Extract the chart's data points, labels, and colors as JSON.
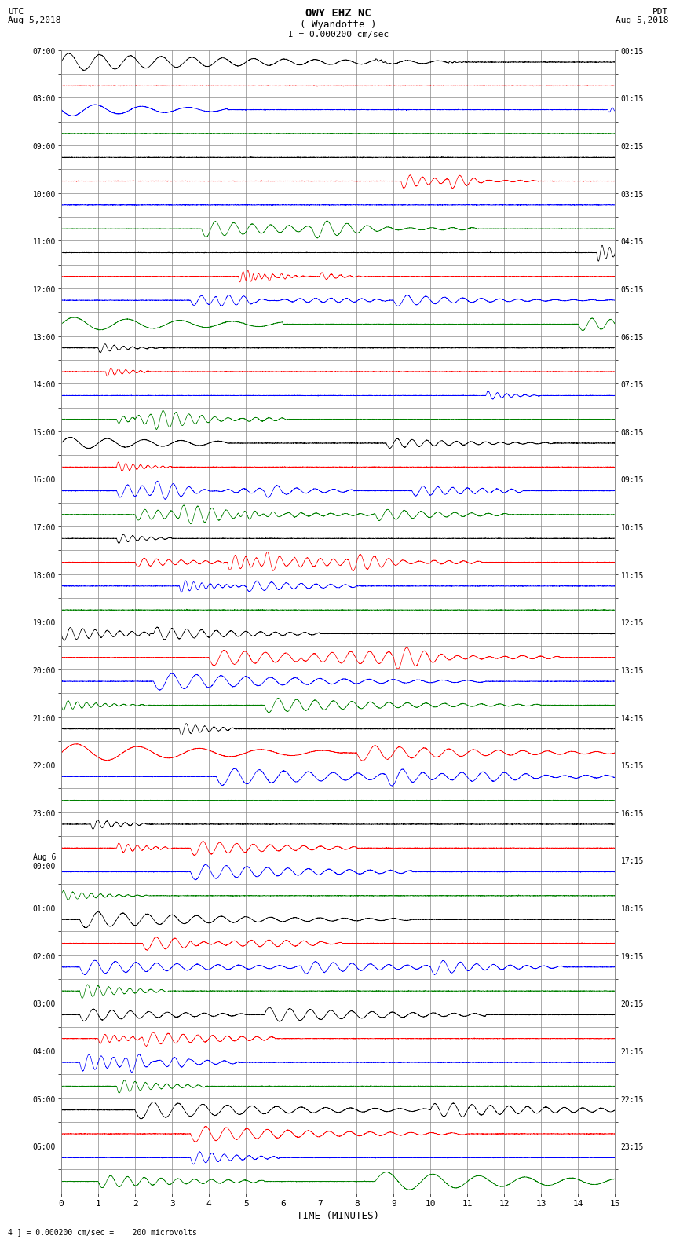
{
  "title_line1": "OWY EHZ NC",
  "title_line2": "( Wyandotte )",
  "scale_label": "I = 0.000200 cm/sec",
  "left_date_label": "UTC\nAug 5,2018",
  "right_date_label": "PDT\nAug 5,2018",
  "xlabel": "TIME (MINUTES)",
  "footer_label": "4 ] = 0.000200 cm/sec =    200 microvolts",
  "left_times": [
    "07:00",
    "",
    "08:00",
    "",
    "09:00",
    "",
    "10:00",
    "",
    "11:00",
    "",
    "12:00",
    "",
    "13:00",
    "",
    "14:00",
    "",
    "15:00",
    "",
    "16:00",
    "",
    "17:00",
    "",
    "18:00",
    "",
    "19:00",
    "",
    "20:00",
    "",
    "21:00",
    "",
    "22:00",
    "",
    "23:00",
    "",
    "Aug 6\n00:00",
    "",
    "01:00",
    "",
    "02:00",
    "",
    "03:00",
    "",
    "04:00",
    "",
    "05:00",
    "",
    "06:00",
    ""
  ],
  "right_times": [
    "00:15",
    "",
    "01:15",
    "",
    "02:15",
    "",
    "03:15",
    "",
    "04:15",
    "",
    "05:15",
    "",
    "06:15",
    "",
    "07:15",
    "",
    "08:15",
    "",
    "09:15",
    "",
    "10:15",
    "",
    "11:15",
    "",
    "12:15",
    "",
    "13:15",
    "",
    "14:15",
    "",
    "15:15",
    "",
    "16:15",
    "",
    "17:15",
    "",
    "18:15",
    "",
    "19:15",
    "",
    "20:15",
    "",
    "21:15",
    "",
    "22:15",
    "",
    "23:15",
    ""
  ],
  "n_rows": 48,
  "x_min": 0,
  "x_max": 15,
  "x_ticks": [
    0,
    1,
    2,
    3,
    4,
    5,
    6,
    7,
    8,
    9,
    10,
    11,
    12,
    13,
    14,
    15
  ],
  "row_colors_cycle": [
    "black",
    "red",
    "blue",
    "green"
  ],
  "bg_color": "white",
  "grid_color": "#888888",
  "line_width": 0.5,
  "figsize": [
    8.5,
    16.13
  ],
  "dpi": 100,
  "seismic_events": [
    {
      "row": 0,
      "t0": 0.0,
      "type": "big_wave",
      "amp": 0.38,
      "freq": 1.2,
      "decay": 0.18,
      "dur": 3.5,
      "sign": 1
    },
    {
      "row": 0,
      "t0": 8.5,
      "type": "spike",
      "amp": 0.06,
      "freq": 8,
      "decay": 2.0,
      "dur": 0.3,
      "sign": 1
    },
    {
      "row": 0,
      "t0": 10.5,
      "type": "spike",
      "amp": 0.04,
      "freq": 8,
      "decay": 2.0,
      "dur": 0.2,
      "sign": 1
    },
    {
      "row": 2,
      "t0": 0.0,
      "type": "big_wave",
      "amp": 0.28,
      "freq": 0.8,
      "decay": 0.3,
      "dur": 1.5,
      "sign": -1
    },
    {
      "row": 2,
      "t0": 14.8,
      "type": "spike",
      "amp": 0.12,
      "freq": 6,
      "decay": 1.5,
      "dur": 0.4,
      "sign": -1
    },
    {
      "row": 5,
      "t0": 9.2,
      "type": "spike",
      "amp": 0.32,
      "freq": 3.0,
      "decay": 0.5,
      "dur": 1.2,
      "sign": -1
    },
    {
      "row": 5,
      "t0": 10.5,
      "type": "spike",
      "amp": 0.25,
      "freq": 2.5,
      "decay": 0.6,
      "dur": 0.8,
      "sign": -1
    },
    {
      "row": 7,
      "t0": 3.8,
      "type": "wave_packet",
      "amp": 0.36,
      "freq": 2.0,
      "decay": 0.4,
      "dur": 2.5,
      "sign": -1
    },
    {
      "row": 7,
      "t0": 6.8,
      "type": "wave_packet",
      "amp": 0.3,
      "freq": 1.8,
      "decay": 0.5,
      "dur": 1.5,
      "sign": -1
    },
    {
      "row": 8,
      "t0": 14.5,
      "type": "spike_sharp",
      "amp": 0.38,
      "freq": 5,
      "decay": 0.8,
      "dur": 0.5,
      "sign": -1
    },
    {
      "row": 9,
      "t0": 4.8,
      "type": "multi_spike",
      "amp": 0.25,
      "freq": 6,
      "decay": 1.0,
      "dur": 0.3,
      "sign": -1
    },
    {
      "row": 9,
      "t0": 5.0,
      "type": "multi_spike",
      "amp": 0.28,
      "freq": 6,
      "decay": 1.0,
      "dur": 0.3,
      "sign": 1
    },
    {
      "row": 9,
      "t0": 5.2,
      "type": "multi_spike",
      "amp": 0.26,
      "freq": 6,
      "decay": 1.0,
      "dur": 0.3,
      "sign": -1
    },
    {
      "row": 9,
      "t0": 5.6,
      "type": "multi_spike",
      "amp": 0.22,
      "freq": 5,
      "decay": 1.2,
      "dur": 0.4,
      "sign": -1
    },
    {
      "row": 9,
      "t0": 7.0,
      "type": "spike",
      "amp": 0.18,
      "freq": 4,
      "decay": 1.0,
      "dur": 0.4,
      "sign": 1
    },
    {
      "row": 10,
      "t0": 3.5,
      "type": "wave_packet",
      "amp": 0.22,
      "freq": 2.5,
      "decay": 0.5,
      "dur": 1.8,
      "sign": -1
    },
    {
      "row": 10,
      "t0": 4.2,
      "type": "wave_packet",
      "amp": 0.2,
      "freq": 2.5,
      "decay": 0.5,
      "dur": 1.5,
      "sign": -1
    },
    {
      "row": 10,
      "t0": 5.2,
      "type": "wave_packet",
      "amp": 0.18,
      "freq": 2.3,
      "decay": 0.6,
      "dur": 1.2,
      "sign": -1
    },
    {
      "row": 10,
      "t0": 9.0,
      "type": "wave_packet",
      "amp": 0.26,
      "freq": 2.0,
      "decay": 0.5,
      "dur": 2.0,
      "sign": -1
    },
    {
      "row": 11,
      "t0": 0.0,
      "type": "big_wave",
      "amp": 0.3,
      "freq": 0.7,
      "decay": 0.2,
      "dur": 2.0,
      "sign": 1
    },
    {
      "row": 11,
      "t0": 14.0,
      "type": "wave_packet",
      "amp": 0.28,
      "freq": 2.0,
      "decay": 0.4,
      "dur": 1.2,
      "sign": -1
    },
    {
      "row": 12,
      "t0": 1.0,
      "type": "spike",
      "amp": 0.22,
      "freq": 4,
      "decay": 0.8,
      "dur": 0.6,
      "sign": -1
    },
    {
      "row": 13,
      "t0": 1.2,
      "type": "spike_group",
      "amp": 0.2,
      "freq": 5,
      "decay": 0.8,
      "dur": 0.4,
      "sign": -1
    },
    {
      "row": 14,
      "t0": 11.5,
      "type": "spike",
      "amp": 0.2,
      "freq": 4,
      "decay": 0.8,
      "dur": 0.5,
      "sign": 1
    },
    {
      "row": 15,
      "t0": 1.5,
      "type": "spike",
      "amp": 0.18,
      "freq": 4,
      "decay": 0.9,
      "dur": 0.4,
      "sign": -1
    },
    {
      "row": 15,
      "t0": 2.0,
      "type": "wave_packet",
      "amp": 0.22,
      "freq": 3.0,
      "decay": 0.5,
      "dur": 1.0,
      "sign": 1
    },
    {
      "row": 15,
      "t0": 2.5,
      "type": "wave_packet",
      "amp": 0.24,
      "freq": 2.8,
      "decay": 0.4,
      "dur": 1.2,
      "sign": -1
    },
    {
      "row": 16,
      "t0": 0.0,
      "type": "big_wave",
      "amp": 0.26,
      "freq": 1.0,
      "decay": 0.25,
      "dur": 1.5,
      "sign": 1
    },
    {
      "row": 16,
      "t0": 8.8,
      "type": "wave_packet",
      "amp": 0.22,
      "freq": 2.5,
      "decay": 0.5,
      "dur": 1.5,
      "sign": -1
    },
    {
      "row": 17,
      "t0": 1.5,
      "type": "spike",
      "amp": 0.22,
      "freq": 5,
      "decay": 0.7,
      "dur": 0.5,
      "sign": 1
    },
    {
      "row": 18,
      "t0": 1.5,
      "type": "wave_packet",
      "amp": 0.28,
      "freq": 2.5,
      "decay": 0.4,
      "dur": 1.5,
      "sign": -1
    },
    {
      "row": 18,
      "t0": 2.5,
      "type": "wave_packet",
      "amp": 0.24,
      "freq": 2.2,
      "decay": 0.5,
      "dur": 1.2,
      "sign": 1
    },
    {
      "row": 18,
      "t0": 5.5,
      "type": "wave_packet",
      "amp": 0.2,
      "freq": 2.0,
      "decay": 0.6,
      "dur": 0.8,
      "sign": -1
    },
    {
      "row": 18,
      "t0": 9.5,
      "type": "wave_packet",
      "amp": 0.22,
      "freq": 2.5,
      "decay": 0.4,
      "dur": 1.0,
      "sign": -1
    },
    {
      "row": 19,
      "t0": 2.0,
      "type": "wave_packet",
      "amp": 0.24,
      "freq": 2.8,
      "decay": 0.4,
      "dur": 1.5,
      "sign": -1
    },
    {
      "row": 19,
      "t0": 3.2,
      "type": "wave_packet",
      "amp": 0.28,
      "freq": 2.5,
      "decay": 0.4,
      "dur": 1.8,
      "sign": 1
    },
    {
      "row": 19,
      "t0": 4.8,
      "type": "spike",
      "amp": 0.22,
      "freq": 4,
      "decay": 0.8,
      "dur": 0.5,
      "sign": -1
    },
    {
      "row": 19,
      "t0": 8.5,
      "type": "wave_packet",
      "amp": 0.26,
      "freq": 2.2,
      "decay": 0.5,
      "dur": 1.2,
      "sign": -1
    },
    {
      "row": 20,
      "t0": 1.5,
      "type": "spike",
      "amp": 0.22,
      "freq": 4,
      "decay": 0.7,
      "dur": 0.5,
      "sign": -1
    },
    {
      "row": 21,
      "t0": 2.0,
      "type": "wave_packet",
      "amp": 0.2,
      "freq": 3.0,
      "decay": 0.6,
      "dur": 0.8,
      "sign": -1
    },
    {
      "row": 21,
      "t0": 4.5,
      "type": "spike",
      "amp": 0.35,
      "freq": 3.5,
      "decay": 0.4,
      "dur": 0.6,
      "sign": -1
    },
    {
      "row": 21,
      "t0": 5.5,
      "type": "wave_packet",
      "amp": 0.3,
      "freq": 2.8,
      "decay": 0.4,
      "dur": 1.5,
      "sign": 1
    },
    {
      "row": 21,
      "t0": 7.8,
      "type": "wave_packet",
      "amp": 0.26,
      "freq": 2.5,
      "decay": 0.5,
      "dur": 1.2,
      "sign": -1
    },
    {
      "row": 22,
      "t0": 3.2,
      "type": "spike",
      "amp": 0.28,
      "freq": 4.5,
      "decay": 0.6,
      "dur": 0.6,
      "sign": -1
    },
    {
      "row": 22,
      "t0": 5.0,
      "type": "wave_packet",
      "amp": 0.24,
      "freq": 2.5,
      "decay": 0.5,
      "dur": 1.0,
      "sign": -1
    },
    {
      "row": 24,
      "t0": 0.0,
      "type": "spike",
      "amp": 0.3,
      "freq": 3.0,
      "decay": 0.3,
      "dur": 0.8,
      "sign": -1
    },
    {
      "row": 24,
      "t0": 2.5,
      "type": "wave_packet",
      "amp": 0.28,
      "freq": 2.5,
      "decay": 0.4,
      "dur": 1.5,
      "sign": 1
    },
    {
      "row": 25,
      "t0": 4.0,
      "type": "wave_packet",
      "amp": 0.35,
      "freq": 1.8,
      "decay": 0.3,
      "dur": 2.5,
      "sign": -1
    },
    {
      "row": 25,
      "t0": 6.5,
      "type": "wave_packet",
      "amp": 0.32,
      "freq": 2.0,
      "decay": 0.3,
      "dur": 2.0,
      "sign": -1
    },
    {
      "row": 25,
      "t0": 9.0,
      "type": "wave_packet",
      "amp": 0.28,
      "freq": 2.2,
      "decay": 0.4,
      "dur": 1.5,
      "sign": -1
    },
    {
      "row": 26,
      "t0": 2.5,
      "type": "wave_packet",
      "amp": 0.38,
      "freq": 1.5,
      "decay": 0.25,
      "dur": 3.0,
      "sign": -1
    },
    {
      "row": 27,
      "t0": 0.0,
      "type": "spike",
      "amp": 0.22,
      "freq": 4,
      "decay": 0.5,
      "dur": 0.8,
      "sign": -1
    },
    {
      "row": 27,
      "t0": 5.5,
      "type": "wave_packet",
      "amp": 0.32,
      "freq": 2.0,
      "decay": 0.3,
      "dur": 2.5,
      "sign": -1
    },
    {
      "row": 28,
      "t0": 3.2,
      "type": "spike",
      "amp": 0.28,
      "freq": 4,
      "decay": 0.6,
      "dur": 0.5,
      "sign": -1
    },
    {
      "row": 29,
      "t0": 0.0,
      "type": "big_wave",
      "amp": 0.4,
      "freq": 0.6,
      "decay": 0.2,
      "dur": 2.5,
      "sign": 1
    },
    {
      "row": 29,
      "t0": 8.0,
      "type": "wave_packet",
      "amp": 0.35,
      "freq": 1.5,
      "decay": 0.3,
      "dur": 2.5,
      "sign": -1
    },
    {
      "row": 30,
      "t0": 4.2,
      "type": "wave_packet",
      "amp": 0.38,
      "freq": 1.5,
      "decay": 0.25,
      "dur": 3.2,
      "sign": -1
    },
    {
      "row": 30,
      "t0": 8.8,
      "type": "wave_packet",
      "amp": 0.32,
      "freq": 1.8,
      "decay": 0.3,
      "dur": 2.5,
      "sign": -1
    },
    {
      "row": 32,
      "t0": 0.8,
      "type": "spike",
      "amp": 0.22,
      "freq": 4,
      "decay": 0.6,
      "dur": 0.5,
      "sign": -1
    },
    {
      "row": 33,
      "t0": 1.5,
      "type": "spike",
      "amp": 0.22,
      "freq": 4,
      "decay": 0.6,
      "dur": 0.5,
      "sign": 1
    },
    {
      "row": 33,
      "t0": 3.5,
      "type": "wave_packet",
      "amp": 0.32,
      "freq": 2.2,
      "decay": 0.4,
      "dur": 1.5,
      "sign": -1
    },
    {
      "row": 34,
      "t0": 3.5,
      "type": "wave_packet",
      "amp": 0.35,
      "freq": 1.8,
      "decay": 0.3,
      "dur": 2.0,
      "sign": -1
    },
    {
      "row": 35,
      "t0": 0.0,
      "type": "spike",
      "amp": 0.22,
      "freq": 4,
      "decay": 0.5,
      "dur": 0.8,
      "sign": 1
    },
    {
      "row": 36,
      "t0": 0.5,
      "type": "wave_packet",
      "amp": 0.36,
      "freq": 1.5,
      "decay": 0.25,
      "dur": 3.0,
      "sign": -1
    },
    {
      "row": 37,
      "t0": 2.2,
      "type": "wave_packet",
      "amp": 0.3,
      "freq": 2.0,
      "decay": 0.4,
      "dur": 1.8,
      "sign": -1
    },
    {
      "row": 37,
      "t0": 3.5,
      "type": "wave_packet",
      "amp": 0.25,
      "freq": 2.2,
      "decay": 0.5,
      "dur": 1.2,
      "sign": -1
    },
    {
      "row": 38,
      "t0": 0.5,
      "type": "wave_packet",
      "amp": 0.32,
      "freq": 1.8,
      "decay": 0.3,
      "dur": 2.2,
      "sign": -1
    },
    {
      "row": 38,
      "t0": 6.5,
      "type": "wave_packet",
      "amp": 0.28,
      "freq": 2.0,
      "decay": 0.4,
      "dur": 1.5,
      "sign": -1
    },
    {
      "row": 38,
      "t0": 10.0,
      "type": "wave_packet",
      "amp": 0.26,
      "freq": 2.2,
      "decay": 0.5,
      "dur": 1.2,
      "sign": -1
    },
    {
      "row": 39,
      "t0": 0.5,
      "type": "spike",
      "amp": 0.32,
      "freq": 3.5,
      "decay": 0.4,
      "dur": 0.8,
      "sign": -1
    },
    {
      "row": 40,
      "t0": 0.5,
      "type": "wave_packet",
      "amp": 0.28,
      "freq": 2.0,
      "decay": 0.4,
      "dur": 1.5,
      "sign": -1
    },
    {
      "row": 40,
      "t0": 5.5,
      "type": "wave_packet",
      "amp": 0.32,
      "freq": 1.8,
      "decay": 0.3,
      "dur": 2.0,
      "sign": 1
    },
    {
      "row": 41,
      "t0": 1.0,
      "type": "spike",
      "amp": 0.22,
      "freq": 4,
      "decay": 0.6,
      "dur": 0.5,
      "sign": -1
    },
    {
      "row": 41,
      "t0": 2.2,
      "type": "wave_packet",
      "amp": 0.28,
      "freq": 2.5,
      "decay": 0.4,
      "dur": 1.2,
      "sign": -1
    },
    {
      "row": 42,
      "t0": 0.5,
      "type": "spike",
      "amp": 0.38,
      "freq": 3.0,
      "decay": 0.3,
      "dur": 1.0,
      "sign": -1
    },
    {
      "row": 42,
      "t0": 1.8,
      "type": "wave_packet",
      "amp": 0.26,
      "freq": 2.2,
      "decay": 0.5,
      "dur": 1.0,
      "sign": -1
    },
    {
      "row": 43,
      "t0": 1.5,
      "type": "spike",
      "amp": 0.3,
      "freq": 3.5,
      "decay": 0.4,
      "dur": 0.8,
      "sign": -1
    },
    {
      "row": 44,
      "t0": 2.0,
      "type": "wave_packet",
      "amp": 0.38,
      "freq": 1.5,
      "decay": 0.25,
      "dur": 3.0,
      "sign": -1
    },
    {
      "row": 44,
      "t0": 10.0,
      "type": "wave_packet",
      "amp": 0.32,
      "freq": 2.0,
      "decay": 0.3,
      "dur": 2.5,
      "sign": 1
    },
    {
      "row": 45,
      "t0": 3.5,
      "type": "wave_packet",
      "amp": 0.35,
      "freq": 1.8,
      "decay": 0.3,
      "dur": 2.5,
      "sign": -1
    },
    {
      "row": 46,
      "t0": 3.5,
      "type": "spike",
      "amp": 0.3,
      "freq": 3.0,
      "decay": 0.4,
      "dur": 0.8,
      "sign": -1
    },
    {
      "row": 47,
      "t0": 1.0,
      "type": "wave_packet",
      "amp": 0.28,
      "freq": 2.2,
      "decay": 0.4,
      "dur": 1.5,
      "sign": -1
    },
    {
      "row": 47,
      "t0": 8.5,
      "type": "big_wave",
      "amp": 0.42,
      "freq": 0.8,
      "decay": 0.2,
      "dur": 2.5,
      "sign": 1
    }
  ]
}
